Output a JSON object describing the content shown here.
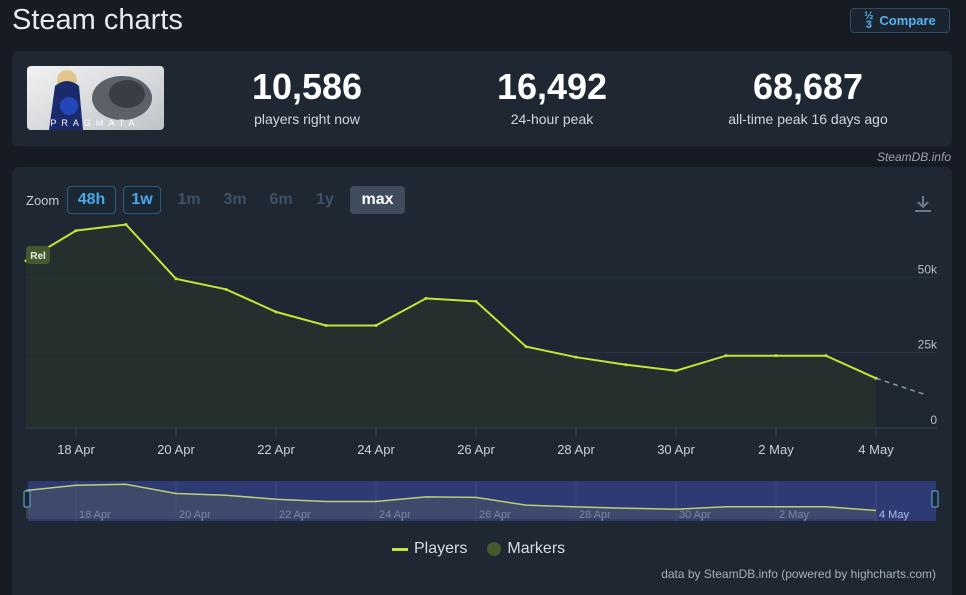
{
  "header": {
    "title": "Steam charts",
    "compare_label": "Compare",
    "compare_icon": "compare-fraction-icon"
  },
  "stats": {
    "thumbnail_text": "PRAGMATA",
    "current": {
      "value": "10,586",
      "label": "players right now"
    },
    "peak24": {
      "value": "16,492",
      "label": "24-hour peak"
    },
    "alltime": {
      "value": "68,687",
      "label": "all-time peak 16 days ago"
    }
  },
  "credit": "SteamDB.info",
  "zoom": {
    "label": "Zoom",
    "buttons": [
      "48h",
      "1w",
      "1m",
      "3m",
      "6m",
      "1y",
      "max"
    ],
    "selected": "max"
  },
  "legend": {
    "players": "Players",
    "markers": "Markers"
  },
  "marker_label": "Rel",
  "footer": "data by SteamDB.info (powered by highcharts.com)",
  "colors": {
    "line": "#c5e437",
    "marker": "#45592e",
    "navigator": "#2e3a73"
  },
  "chart_data": {
    "type": "line",
    "series": [
      {
        "name": "Players",
        "x": [
          "17 Apr",
          "18 Apr",
          "19 Apr",
          "20 Apr",
          "21 Apr",
          "22 Apr",
          "23 Apr",
          "24 Apr",
          "25 Apr",
          "26 Apr",
          "27 Apr",
          "28 Apr",
          "29 Apr",
          "30 Apr",
          "1 May",
          "2 May",
          "3 May",
          "4 May"
        ],
        "values": [
          55500,
          65500,
          67500,
          49500,
          46000,
          38500,
          34000,
          34000,
          43000,
          42000,
          27000,
          23500,
          21000,
          19000,
          24000,
          24000,
          24000,
          16500
        ]
      }
    ],
    "projection": {
      "x": [
        "4 May",
        "5 May"
      ],
      "values": [
        16500,
        11000
      ]
    },
    "x_tick_labels": [
      "18 Apr",
      "20 Apr",
      "22 Apr",
      "24 Apr",
      "26 Apr",
      "28 Apr",
      "30 Apr",
      "2 May",
      "4 May"
    ],
    "y_tick_labels": [
      "0",
      "25k",
      "50k"
    ],
    "y_ticks": [
      0,
      25000,
      50000
    ],
    "ylim": [
      0,
      70000
    ],
    "grid": true,
    "legend_position": "bottom-center"
  }
}
